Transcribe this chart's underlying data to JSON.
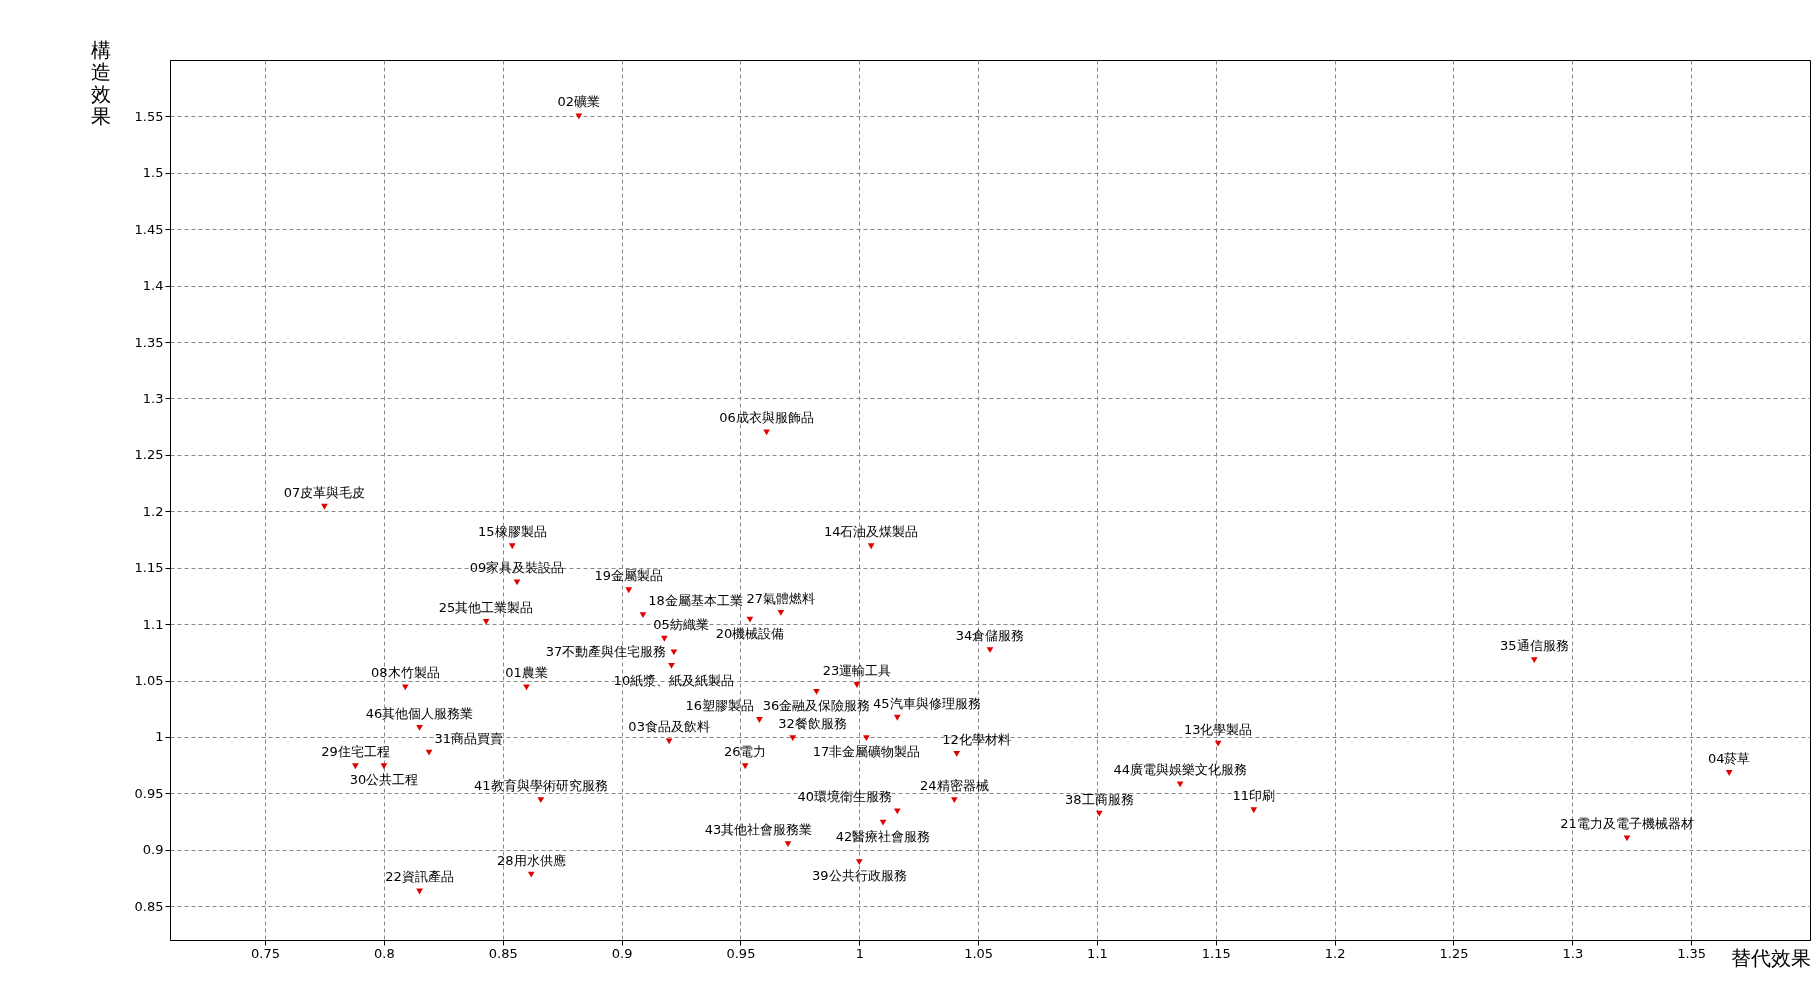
{
  "chart_data": {
    "type": "scatter",
    "xlabel": "替代效果",
    "ylabel": "構造效果",
    "xlim": [
      0.71,
      1.4
    ],
    "ylim": [
      0.82,
      1.6
    ],
    "xticks": [
      0.75,
      0.8,
      0.85,
      0.9,
      0.95,
      1,
      1.05,
      1.1,
      1.15,
      1.2,
      1.25,
      1.3,
      1.35
    ],
    "yticks": [
      0.85,
      0.9,
      0.95,
      1,
      1.05,
      1.1,
      1.15,
      1.2,
      1.25,
      1.3,
      1.35,
      1.4,
      1.45,
      1.5,
      1.55
    ],
    "grid": true,
    "marker": "triangle",
    "series": [
      {
        "color": "#e00000",
        "x": [
          0.882,
          0.961,
          0.775,
          0.854,
          1.005,
          0.856,
          0.843,
          0.903,
          0.909,
          0.954,
          0.967,
          0.918,
          0.922,
          0.921,
          1.055,
          1.284,
          0.809,
          0.86,
          0.999,
          0.982,
          0.815,
          0.958,
          1.016,
          0.92,
          0.972,
          1.003,
          1.041,
          1.151,
          0.819,
          0.788,
          0.8,
          0.952,
          1.366,
          1.135,
          0.866,
          1.04,
          1.016,
          1.166,
          1.101,
          1.01,
          1.323,
          0.97,
          1.0,
          0.862,
          0.815
        ],
        "values": [
          1.55,
          1.27,
          1.204,
          1.169,
          1.169,
          1.137,
          1.102,
          1.13,
          1.108,
          1.104,
          1.11,
          1.087,
          1.075,
          1.063,
          1.077,
          1.068,
          1.044,
          1.044,
          1.046,
          1.04,
          1.008,
          1.015,
          1.017,
          0.996,
          0.999,
          0.999,
          0.985,
          0.994,
          0.986,
          0.974,
          0.974,
          0.974,
          0.968,
          0.958,
          0.944,
          0.944,
          0.934,
          0.935,
          0.932,
          0.924,
          0.91,
          0.905,
          0.889,
          0.878,
          0.863
        ]
      }
    ],
    "annotations": [
      {
        "text": "02礦業",
        "x": 0.882,
        "y": 1.55
      },
      {
        "text": "06成衣與服飾品",
        "x": 0.961,
        "y": 1.27
      },
      {
        "text": "07皮革與毛皮",
        "x": 0.775,
        "y": 1.204
      },
      {
        "text": "15橡膠製品",
        "x": 0.854,
        "y": 1.169
      },
      {
        "text": "14石油及煤製品",
        "x": 1.005,
        "y": 1.169
      },
      {
        "text": "09家具及裝設品",
        "x": 0.856,
        "y": 1.137
      },
      {
        "text": "25其他工業製品",
        "x": 0.843,
        "y": 1.102
      },
      {
        "text": "19金屬製品",
        "x": 0.903,
        "y": 1.13
      },
      {
        "text": "18金屬基本工業",
        "x": 0.909,
        "y": 1.108
      },
      {
        "text": "20機械設備",
        "x": 0.954,
        "y": 1.104
      },
      {
        "text": "27氣體燃料",
        "x": 0.967,
        "y": 1.11
      },
      {
        "text": "05紡織業",
        "x": 0.918,
        "y": 1.087
      },
      {
        "text": "10紙漿、紙及紙製品",
        "x": 0.922,
        "y": 1.075
      },
      {
        "text": "37不動產與住宅服務",
        "x": 0.921,
        "y": 1.063
      },
      {
        "text": "34倉儲服務",
        "x": 1.055,
        "y": 1.077
      },
      {
        "text": "35通信服務",
        "x": 1.284,
        "y": 1.068
      },
      {
        "text": "08木竹製品",
        "x": 0.809,
        "y": 1.044
      },
      {
        "text": "01農業",
        "x": 0.86,
        "y": 1.044
      },
      {
        "text": "23運輸工具",
        "x": 0.999,
        "y": 1.046
      },
      {
        "text": "36金融及保險服務",
        "x": 0.982,
        "y": 1.04
      },
      {
        "text": "46其他個人服務業",
        "x": 0.815,
        "y": 1.008
      },
      {
        "text": "16塑膠製品",
        "x": 0.958,
        "y": 1.015
      },
      {
        "text": "45汽車與修理服務",
        "x": 1.016,
        "y": 1.017
      },
      {
        "text": "03食品及飲料",
        "x": 0.92,
        "y": 0.996
      },
      {
        "text": "32餐飲服務",
        "x": 0.972,
        "y": 0.999
      },
      {
        "text": "17非金屬礦物製品",
        "x": 1.003,
        "y": 0.999
      },
      {
        "text": "12化學材料",
        "x": 1.041,
        "y": 0.985
      },
      {
        "text": "13化學製品",
        "x": 1.151,
        "y": 0.994
      },
      {
        "text": "31商品買賣",
        "x": 0.819,
        "y": 0.986
      },
      {
        "text": "29住宅工程",
        "x": 0.788,
        "y": 0.974
      },
      {
        "text": "30公共工程",
        "x": 0.8,
        "y": 0.974
      },
      {
        "text": "26電力",
        "x": 0.952,
        "y": 0.974
      },
      {
        "text": "04菸草",
        "x": 1.366,
        "y": 0.968
      },
      {
        "text": "44廣電與娛樂文化服務",
        "x": 1.135,
        "y": 0.958
      },
      {
        "text": "41教育與學術研究服務",
        "x": 0.866,
        "y": 0.944
      },
      {
        "text": "24精密器械",
        "x": 1.04,
        "y": 0.944
      },
      {
        "text": "40環境衛生服務",
        "x": 1.016,
        "y": 0.934
      },
      {
        "text": "11印刷",
        "x": 1.166,
        "y": 0.935
      },
      {
        "text": "38工商服務",
        "x": 1.101,
        "y": 0.932
      },
      {
        "text": "42醫療社會服務",
        "x": 1.01,
        "y": 0.924
      },
      {
        "text": "21電力及電子機械器材",
        "x": 1.323,
        "y": 0.91
      },
      {
        "text": "43其他社會服務業",
        "x": 0.97,
        "y": 0.905
      },
      {
        "text": "39公共行政服務",
        "x": 1.0,
        "y": 0.889
      },
      {
        "text": "28用水供應",
        "x": 0.862,
        "y": 0.878
      },
      {
        "text": "22資訊產品",
        "x": 0.815,
        "y": 0.863
      }
    ]
  }
}
